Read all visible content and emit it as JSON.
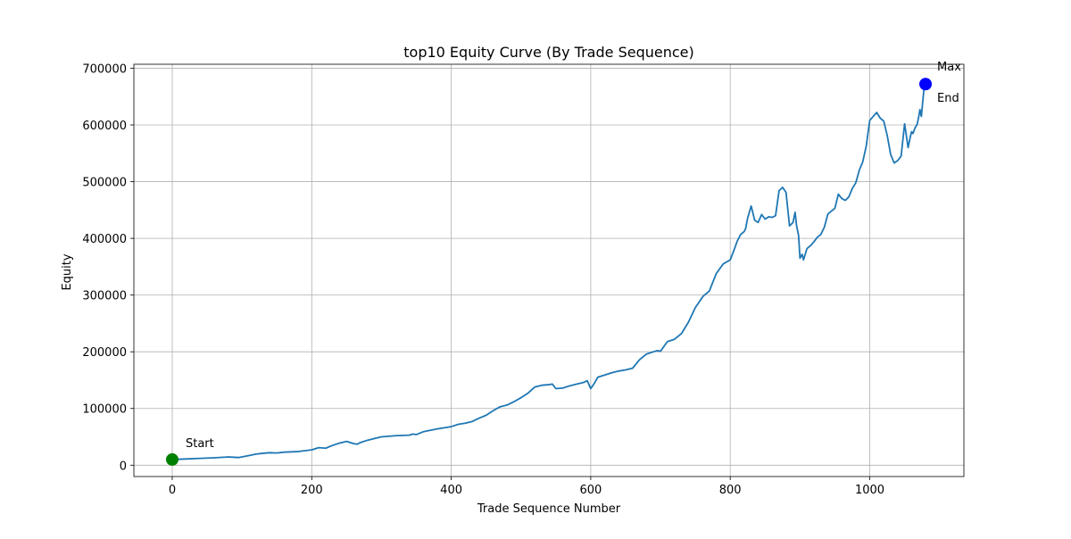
{
  "chart_data": {
    "type": "line",
    "title": "top10 Equity Curve (By Trade Sequence)",
    "xlabel": "Trade Sequence Number",
    "ylabel": "Equity",
    "xlim": [
      -55,
      1135
    ],
    "ylim": [
      -20000,
      707000
    ],
    "xticks": [
      0,
      200,
      400,
      600,
      800,
      1000
    ],
    "yticks": [
      0,
      100000,
      200000,
      300000,
      400000,
      500000,
      600000,
      700000
    ],
    "grid": true,
    "line_color": "#1f77b4",
    "series": [
      {
        "x": [
          0,
          20,
          40,
          60,
          80,
          95,
          110,
          120,
          130,
          140,
          150,
          160,
          180,
          200,
          210,
          220,
          230,
          240,
          250,
          260,
          265,
          270,
          280,
          290,
          300,
          320,
          340,
          345,
          350,
          360,
          380,
          400,
          410,
          420,
          430,
          440,
          450,
          460,
          470,
          480,
          490,
          500,
          510,
          520,
          530,
          540,
          545,
          550,
          560,
          570,
          580,
          590,
          595,
          600,
          605,
          610,
          620,
          630,
          640,
          650,
          660,
          670,
          680,
          690,
          695,
          700,
          710,
          720,
          730,
          740,
          750,
          760,
          762,
          770,
          780,
          790,
          800,
          805,
          810,
          815,
          820,
          822,
          825,
          830,
          835,
          840,
          845,
          850,
          855,
          860,
          865,
          870,
          875,
          880,
          885,
          890,
          893,
          895,
          898,
          900,
          903,
          905,
          910,
          915,
          920,
          925,
          930,
          935,
          940,
          945,
          950,
          955,
          960,
          965,
          970,
          975,
          980,
          985,
          990,
          995,
          1000,
          1005,
          1010,
          1015,
          1020,
          1025,
          1030,
          1035,
          1040,
          1045,
          1050,
          1055,
          1058,
          1060,
          1062,
          1065,
          1068,
          1070,
          1072,
          1074,
          1076,
          1078,
          1080
        ],
        "y": [
          10000,
          11000,
          12000,
          13000,
          14500,
          13500,
          17000,
          19500,
          21000,
          22000,
          21500,
          23000,
          24000,
          27000,
          31000,
          30000,
          35000,
          39000,
          42000,
          38000,
          37000,
          40000,
          44000,
          47000,
          50000,
          52000,
          53000,
          55000,
          54000,
          59000,
          64000,
          68000,
          72000,
          74000,
          77000,
          83000,
          88000,
          96000,
          103000,
          106000,
          112000,
          119000,
          127000,
          138000,
          141000,
          142000,
          143000,
          135000,
          136000,
          140000,
          143000,
          146000,
          149000,
          135000,
          144000,
          155000,
          159000,
          163000,
          166000,
          168000,
          171000,
          186000,
          196000,
          200000,
          202000,
          201000,
          218000,
          222000,
          232000,
          252000,
          278000,
          296000,
          299000,
          307000,
          338000,
          355000,
          362000,
          378000,
          395000,
          407000,
          412000,
          417000,
          436000,
          457000,
          432000,
          428000,
          442000,
          434000,
          438000,
          437000,
          440000,
          484000,
          490000,
          481000,
          422000,
          428000,
          446000,
          423000,
          405000,
          365000,
          372000,
          362000,
          382000,
          387000,
          394000,
          402000,
          407000,
          420000,
          443000,
          448000,
          453000,
          478000,
          470000,
          467000,
          473000,
          488000,
          498000,
          520000,
          535000,
          563000,
          608000,
          615000,
          622000,
          612000,
          607000,
          582000,
          548000,
          533000,
          537000,
          545000,
          602000,
          560000,
          578000,
          588000,
          585000,
          595000,
          601000,
          613000,
          627000,
          615000,
          641000,
          666000,
          672000
        ]
      }
    ],
    "markers": [
      {
        "label": "Start",
        "x": 0,
        "y": 10000,
        "color": "#008000"
      },
      {
        "label": "Max",
        "x": 1080,
        "y": 672000,
        "color": "#0000ff"
      },
      {
        "label": "End",
        "x": 1080,
        "y": 672000,
        "color": "#0000ff"
      }
    ]
  }
}
